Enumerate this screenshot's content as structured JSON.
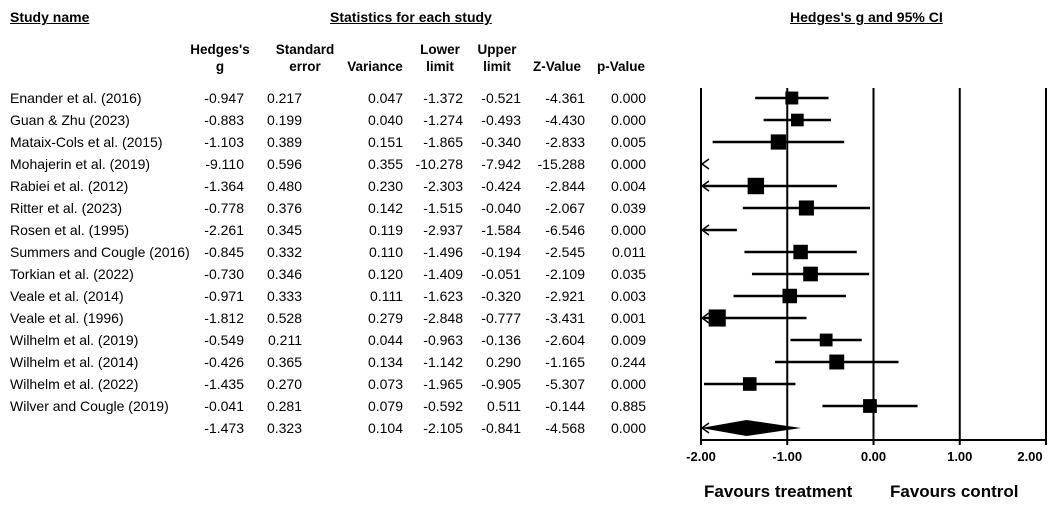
{
  "headers": {
    "study_name": "Study name",
    "statistics": "Statistics for each study",
    "plot": "Hedges's g and 95% CI"
  },
  "columns": [
    {
      "key": "g",
      "line1": "Hedges's",
      "line2": "g"
    },
    {
      "key": "se",
      "line1": "Standard",
      "line2": "error"
    },
    {
      "key": "var",
      "line1": "",
      "line2": "Variance"
    },
    {
      "key": "lower",
      "line1": "Lower",
      "line2": "limit"
    },
    {
      "key": "upper",
      "line1": "Upper",
      "line2": "limit"
    },
    {
      "key": "z",
      "line1": "",
      "line2": "Z-Value"
    },
    {
      "key": "p",
      "line1": "",
      "line2": "p-Value"
    }
  ],
  "rows": [
    {
      "study": "Enander et al. (2016)",
      "g": "-0.947",
      "se": "0.217",
      "var": "0.047",
      "lower": "-1.372",
      "upper": "-0.521",
      "z": "-4.361",
      "p": "0.000"
    },
    {
      "study": "Guan & Zhu (2023)",
      "g": "-0.883",
      "se": "0.199",
      "var": "0.040",
      "lower": "-1.274",
      "upper": "-0.493",
      "z": "-4.430",
      "p": "0.000"
    },
    {
      "study": "Mataix-Cols et al. (2015)",
      "g": "-1.103",
      "se": "0.389",
      "var": "0.151",
      "lower": "-1.865",
      "upper": "-0.340",
      "z": "-2.833",
      "p": "0.005"
    },
    {
      "study": "Mohajerin et al. (2019)",
      "g": "-9.110",
      "se": "0.596",
      "var": "0.355",
      "lower": "-10.278",
      "upper": "-7.942",
      "z": "-15.288",
      "p": "0.000"
    },
    {
      "study": "Rabiei et al. (2012)",
      "g": "-1.364",
      "se": "0.480",
      "var": "0.230",
      "lower": "-2.303",
      "upper": "-0.424",
      "z": "-2.844",
      "p": "0.004"
    },
    {
      "study": "Ritter et al. (2023)",
      "g": "-0.778",
      "se": "0.376",
      "var": "0.142",
      "lower": "-1.515",
      "upper": "-0.040",
      "z": "-2.067",
      "p": "0.039"
    },
    {
      "study": "Rosen et al. (1995)",
      "g": "-2.261",
      "se": "0.345",
      "var": "0.119",
      "lower": "-2.937",
      "upper": "-1.584",
      "z": "-6.546",
      "p": "0.000"
    },
    {
      "study": "Summers and Cougle (2016)",
      "g": "-0.845",
      "se": "0.332",
      "var": "0.110",
      "lower": "-1.496",
      "upper": "-0.194",
      "z": "-2.545",
      "p": "0.011"
    },
    {
      "study": "Torkian et al. (2022)",
      "g": "-0.730",
      "se": "0.346",
      "var": "0.120",
      "lower": "-1.409",
      "upper": "-0.051",
      "z": "-2.109",
      "p": "0.035"
    },
    {
      "study": "Veale et al. (2014)",
      "g": "-0.971",
      "se": "0.333",
      "var": "0.111",
      "lower": "-1.623",
      "upper": "-0.320",
      "z": "-2.921",
      "p": "0.003"
    },
    {
      "study": "Veale et al. (1996)",
      "g": "-1.812",
      "se": "0.528",
      "var": "0.279",
      "lower": "-2.848",
      "upper": "-0.777",
      "z": "-3.431",
      "p": "0.001"
    },
    {
      "study": "Wilhelm et al. (2019)",
      "g": "-0.549",
      "se": "0.211",
      "var": "0.044",
      "lower": "-0.963",
      "upper": "-0.136",
      "z": "-2.604",
      "p": "0.009"
    },
    {
      "study": "Wilhelm et al. (2014)",
      "g": "-0.426",
      "se": "0.365",
      "var": "0.134",
      "lower": "-1.142",
      "upper": "0.290",
      "z": "-1.165",
      "p": "0.244"
    },
    {
      "study": "Wilhelm et al. (2022)",
      "g": "-1.435",
      "se": "0.270",
      "var": "0.073",
      "lower": "-1.965",
      "upper": "-0.905",
      "z": "-5.307",
      "p": "0.000"
    },
    {
      "study": "Wilver and Cougle (2019)",
      "g": "-0.041",
      "se": "0.281",
      "var": "0.079",
      "lower": "-0.592",
      "upper": "0.511",
      "z": "-0.144",
      "p": "0.885"
    }
  ],
  "summary": {
    "study": "",
    "g": "-1.473",
    "se": "0.323",
    "var": "0.104",
    "lower": "-2.105",
    "upper": "-0.841",
    "z": "-4.568",
    "p": "0.000"
  },
  "footer": {
    "favours_treatment": "Favours treatment",
    "favours_control": "Favours control"
  },
  "chart_data": {
    "type": "forest",
    "title": "Hedges's g and 95% CI",
    "xlim": [
      -2.0,
      2.0
    ],
    "ticks": [
      {
        "value": -2.0,
        "label": "-2.00"
      },
      {
        "value": -1.0,
        "label": "-1.00"
      },
      {
        "value": 0.0,
        "label": "0.00"
      },
      {
        "value": 1.0,
        "label": "1.00"
      },
      {
        "value": 2.0,
        "label": "2.00"
      }
    ],
    "studies": [
      {
        "name": "Enander et al. (2016)",
        "g": -0.947,
        "lower": -1.372,
        "upper": -0.521,
        "weight": 0.047
      },
      {
        "name": "Guan & Zhu (2023)",
        "g": -0.883,
        "lower": -1.274,
        "upper": -0.493,
        "weight": 0.04
      },
      {
        "name": "Mataix-Cols et al. (2015)",
        "g": -1.103,
        "lower": -1.865,
        "upper": -0.34,
        "weight": 0.151
      },
      {
        "name": "Mohajerin et al. (2019)",
        "g": -9.11,
        "lower": -10.278,
        "upper": -7.942,
        "weight": 0.355
      },
      {
        "name": "Rabiei et al. (2012)",
        "g": -1.364,
        "lower": -2.303,
        "upper": -0.424,
        "weight": 0.23
      },
      {
        "name": "Ritter et al. (2023)",
        "g": -0.778,
        "lower": -1.515,
        "upper": -0.04,
        "weight": 0.142
      },
      {
        "name": "Rosen et al. (1995)",
        "g": -2.261,
        "lower": -2.937,
        "upper": -1.584,
        "weight": 0.119
      },
      {
        "name": "Summers and Cougle (2016)",
        "g": -0.845,
        "lower": -1.496,
        "upper": -0.194,
        "weight": 0.11
      },
      {
        "name": "Torkian et al. (2022)",
        "g": -0.73,
        "lower": -1.409,
        "upper": -0.051,
        "weight": 0.12
      },
      {
        "name": "Veale et al. (2014)",
        "g": -0.971,
        "lower": -1.623,
        "upper": -0.32,
        "weight": 0.111
      },
      {
        "name": "Veale et al. (1996)",
        "g": -1.812,
        "lower": -2.848,
        "upper": -0.777,
        "weight": 0.279
      },
      {
        "name": "Wilhelm et al. (2019)",
        "g": -0.549,
        "lower": -0.963,
        "upper": -0.136,
        "weight": 0.044
      },
      {
        "name": "Wilhelm et al. (2014)",
        "g": -0.426,
        "lower": -1.142,
        "upper": 0.29,
        "weight": 0.134
      },
      {
        "name": "Wilhelm et al. (2022)",
        "g": -1.435,
        "lower": -1.965,
        "upper": -0.905,
        "weight": 0.073
      },
      {
        "name": "Wilver and Cougle (2019)",
        "g": -0.041,
        "lower": -0.592,
        "upper": 0.511,
        "weight": 0.079
      }
    ],
    "summary": {
      "g": -1.473,
      "lower": -2.105,
      "upper": -0.841
    }
  }
}
